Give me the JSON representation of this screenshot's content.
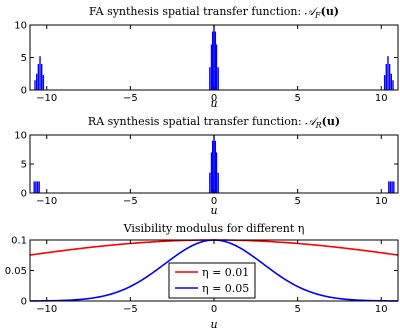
{
  "chart_data": [
    {
      "type": "bar",
      "title": "FA synthesis spatial transfer function: 𝒜F(u)",
      "title_main": "FA synthesis spatial transfer function: ",
      "title_math": "𝒜",
      "title_sub": "F",
      "title_arg": "(u)",
      "xlabel": "u",
      "ylabel": "",
      "xlim": [
        -11,
        11
      ],
      "ylim": [
        0,
        10
      ],
      "xticks": [
        -10,
        -5,
        0,
        5,
        10
      ],
      "yticks": [
        0,
        5,
        10
      ],
      "yticklabels": [
        "0",
        "5",
        "10"
      ],
      "color": "#0000ff",
      "x": [
        -10.7,
        -10.6,
        -10.5,
        -10.4,
        -10.3,
        -10.2,
        -0.25,
        -0.15,
        -0.08,
        0.0,
        0.08,
        0.15,
        0.25,
        10.2,
        10.3,
        10.4,
        10.5,
        10.6,
        10.7
      ],
      "values": [
        1.5,
        2.5,
        4.0,
        5.2,
        4.0,
        2.3,
        3.5,
        7.0,
        9.0,
        10.0,
        9.0,
        7.0,
        3.5,
        2.3,
        4.0,
        5.2,
        4.0,
        2.5,
        1.5
      ]
    },
    {
      "type": "bar",
      "title": "RA synthesis spatial transfer function: 𝒜R(u)",
      "title_main": "RA synthesis spatial transfer function: ",
      "title_math": "𝒜",
      "title_sub": "R",
      "title_arg": "(u)",
      "xlabel": "u",
      "ylabel": "",
      "xlim": [
        -11,
        11
      ],
      "ylim": [
        0,
        10
      ],
      "xticks": [
        -10,
        -5,
        0,
        5,
        10
      ],
      "yticks": [
        0,
        5,
        10
      ],
      "yticklabels": [
        "0",
        "5",
        "10"
      ],
      "color": "#0000ff",
      "x": [
        -10.75,
        -10.65,
        -10.55,
        -10.45,
        -0.25,
        -0.15,
        -0.08,
        0.0,
        0.08,
        0.15,
        0.25,
        10.45,
        10.55,
        10.65,
        10.75
      ],
      "values": [
        2,
        2,
        2,
        2,
        3.5,
        7.0,
        9.0,
        10.0,
        9.0,
        7.0,
        3.5,
        2,
        2,
        2,
        2
      ]
    },
    {
      "type": "line",
      "title": "Visibility modulus for different η",
      "xlabel": "u",
      "ylabel": "",
      "xlim": [
        -11,
        11
      ],
      "ylim": [
        0,
        0.1
      ],
      "xticks": [
        -10,
        -5,
        0,
        5,
        10
      ],
      "yticks": [
        0,
        0.05,
        0.1
      ],
      "yticklabels": [
        "0",
        "0.05",
        "0.1"
      ],
      "legend_position": "lower-center",
      "series": [
        {
          "name": "η = 0.01",
          "color": "#ff0000",
          "peak": 0.1,
          "sigma": 14.6
        },
        {
          "name": "η = 0.05",
          "color": "#0000ff",
          "peak": 0.1,
          "sigma": 2.95
        }
      ]
    }
  ]
}
